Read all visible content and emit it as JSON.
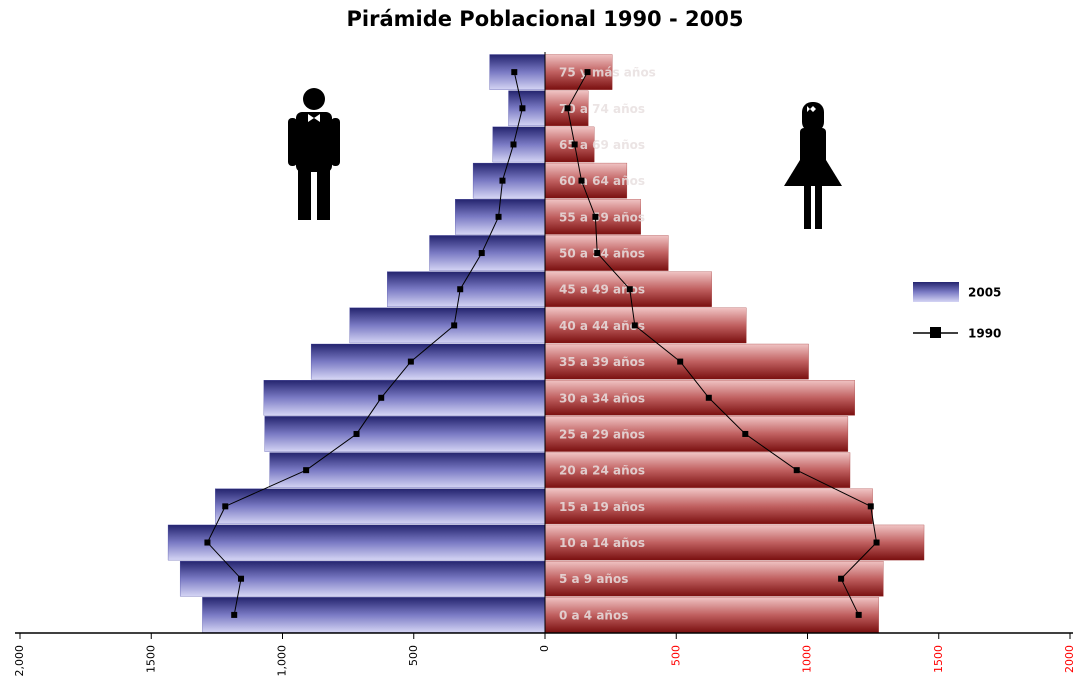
{
  "chart_data": {
    "type": "bar",
    "title": "Pirámide Poblacional 1990 - 2005",
    "categories": [
      "0 a 4 años",
      "5 a 9 años",
      "10 a 14 años",
      "15 a 19 años",
      "20 a 24 años",
      "25 a 29 años",
      "30 a 34 años",
      "35 a 39 años",
      "40 a 44 años",
      "45 a 49 años",
      "50 a 54 años",
      "55 a 59 años",
      "60 a 64 años",
      "65 a 69 años",
      "70 a 74 años",
      "75 y más años"
    ],
    "series": [
      {
        "name": "2005",
        "color": "#3a3a9c",
        "color_right": "#9c2a2a",
        "left": [
          -1305,
          -1390,
          -1436,
          -1256,
          -1049,
          -1068,
          -1071,
          -891,
          -744,
          -601,
          -440,
          -342,
          -274,
          -199,
          -139,
          -211
        ],
        "right": [
          1271,
          1289,
          1444,
          1248,
          1162,
          1154,
          1180,
          1004,
          767,
          635,
          470,
          365,
          312,
          188,
          165,
          256
        ]
      },
      {
        "name": "1990",
        "color": "#000000",
        "left": [
          -1184,
          -1158,
          -1286,
          -1218,
          -910,
          -718,
          -624,
          -511,
          -346,
          -323,
          -241,
          -177,
          -162,
          -120,
          -86,
          -117
        ],
        "right": [
          1195,
          1128,
          1263,
          1241,
          959,
          763,
          624,
          515,
          342,
          323,
          199,
          192,
          139,
          113,
          86,
          162
        ]
      }
    ],
    "xlim": [
      -2000,
      2000
    ],
    "xticks": [
      {
        "value": -2000,
        "label": "2,000"
      },
      {
        "value": -1500,
        "label": "1500"
      },
      {
        "value": -1000,
        "label": "1,000"
      },
      {
        "value": -500,
        "label": "500"
      },
      0,
      500,
      1000,
      1500,
      2000
    ],
    "tick_colors": {
      "negative": "#000000",
      "positive": "#ff0000"
    }
  }
}
